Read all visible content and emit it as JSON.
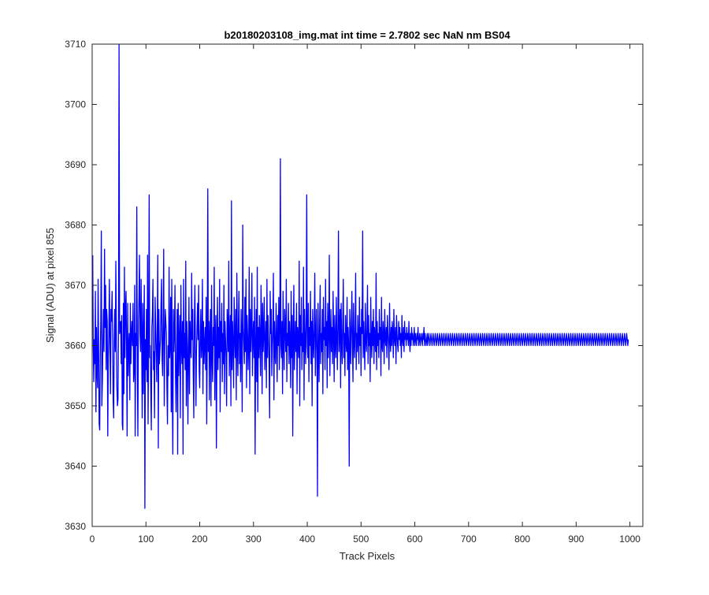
{
  "chart_data": {
    "type": "line",
    "title": "b20180203108_img.mat int time = 2.7802 sec  NaN nm BS04",
    "xlabel": "Track Pixels",
    "ylabel": "Signal (ADU) at pixel 855",
    "xlim": [
      0,
      1024
    ],
    "ylim": [
      3630,
      3710
    ],
    "x_ticks": [
      0,
      100,
      200,
      300,
      400,
      500,
      600,
      700,
      800,
      900,
      1000
    ],
    "y_ticks": [
      3630,
      3640,
      3650,
      3660,
      3670,
      3680,
      3690,
      3700,
      3710
    ],
    "grid": false,
    "legend": "none",
    "colors": {
      "series": "#0000ff",
      "axes": "#262626",
      "background": "#ffffff"
    },
    "series": [
      {
        "x_start": 1,
        "x_step": 1,
        "values": [
          3675,
          3660,
          3654,
          3661,
          3657,
          3669,
          3649,
          3663,
          3656,
          3653,
          3671,
          3660,
          3647,
          3646,
          3658,
          3664,
          3679,
          3650,
          3654,
          3661,
          3666,
          3659,
          3676,
          3663,
          3670,
          3656,
          3666,
          3664,
          3645,
          3658,
          3662,
          3671,
          3660,
          3652,
          3666,
          3664,
          3669,
          3662,
          3651,
          3648,
          3661,
          3666,
          3659,
          3674,
          3662,
          3653,
          3650,
          3651,
          3664,
          3710,
          3662,
          3663,
          3664,
          3657,
          3665,
          3647,
          3646,
          3667,
          3652,
          3673,
          3658,
          3666,
          3669,
          3659,
          3645,
          3667,
          3655,
          3660,
          3662,
          3651,
          3667,
          3657,
          3662,
          3664,
          3660,
          3667,
          3654,
          3656,
          3670,
          3645,
          3662,
          3660,
          3683,
          3655,
          3645,
          3664,
          3668,
          3675,
          3662,
          3659,
          3671,
          3662,
          3648,
          3667,
          3652,
          3662,
          3670,
          3633,
          3661,
          3656,
          3666,
          3654,
          3675,
          3647,
          3662,
          3685,
          3658,
          3660,
          3653,
          3646,
          3663,
          3665,
          3671,
          3656,
          3659,
          3648,
          3668,
          3664,
          3659,
          3654,
          3662,
          3675,
          3643,
          3666,
          3657,
          3659,
          3661,
          3667,
          3671,
          3658,
          3655,
          3664,
          3676,
          3650,
          3660,
          3666,
          3664,
          3662,
          3653,
          3647,
          3660,
          3655,
          3673,
          3658,
          3660,
          3668,
          3649,
          3671,
          3652,
          3642,
          3666,
          3659,
          3662,
          3670,
          3655,
          3649,
          3658,
          3666,
          3642,
          3667,
          3655,
          3661,
          3665,
          3648,
          3670,
          3660,
          3657,
          3664,
          3642,
          3671,
          3658,
          3662,
          3656,
          3674,
          3650,
          3664,
          3660,
          3647,
          3658,
          3668,
          3652,
          3664,
          3660,
          3658,
          3672,
          3661,
          3666,
          3655,
          3648,
          3664,
          3670,
          3660,
          3650,
          3659,
          3663,
          3667,
          3661,
          3670,
          3656,
          3653,
          3662,
          3666,
          3658,
          3660,
          3671,
          3652,
          3664,
          3657,
          3660,
          3663,
          3656,
          3668,
          3647,
          3660,
          3686,
          3659,
          3664,
          3651,
          3662,
          3666,
          3650,
          3670,
          3658,
          3654,
          3663,
          3660,
          3673,
          3651,
          3662,
          3665,
          3643,
          3660,
          3668,
          3656,
          3663,
          3658,
          3671,
          3649,
          3664,
          3659,
          3667,
          3654,
          3662,
          3657,
          3670,
          3652,
          3664,
          3661,
          3658,
          3650,
          3666,
          3663,
          3659,
          3674,
          3655,
          3661,
          3665,
          3650,
          3684,
          3656,
          3664,
          3660,
          3653,
          3668,
          3662,
          3658,
          3666,
          3651,
          3672,
          3660,
          3655,
          3664,
          3669,
          3657,
          3662,
          3654,
          3666,
          3661,
          3649,
          3680,
          3663,
          3660,
          3657,
          3668,
          3659,
          3671,
          3653,
          3665,
          3662,
          3656,
          3660,
          3673,
          3652,
          3666,
          3659,
          3663,
          3672,
          3655,
          3661,
          3664,
          3658,
          3668,
          3642,
          3660,
          3666,
          3654,
          3673,
          3649,
          3663,
          3658,
          3665,
          3661,
          3655,
          3670,
          3664,
          3652,
          3667,
          3659,
          3662,
          3668,
          3656,
          3660,
          3664,
          3653,
          3671,
          3658,
          3665,
          3661,
          3657,
          3648,
          3669,
          3662,
          3666,
          3655,
          3660,
          3663,
          3672,
          3651,
          3664,
          3659,
          3657,
          3667,
          3661,
          3654,
          3665,
          3660,
          3668,
          3656,
          3662,
          3691,
          3660,
          3658,
          3664,
          3652,
          3669,
          3661,
          3656,
          3666,
          3663,
          3659,
          3671,
          3654,
          3662,
          3660,
          3667,
          3657,
          3664,
          3661,
          3653,
          3669,
          3658,
          3665,
          3645,
          3662,
          3670,
          3656,
          3660,
          3664,
          3659,
          3667,
          3652,
          3663,
          3661,
          3658,
          3674,
          3650,
          3665,
          3660,
          3668,
          3656,
          3662,
          3659,
          3673,
          3651,
          3666,
          3661,
          3657,
          3664,
          3685,
          3660,
          3658,
          3667,
          3654,
          3663,
          3660,
          3669,
          3657,
          3664,
          3650,
          3666,
          3661,
          3658,
          3663,
          3672,
          3655,
          3661,
          3666,
          3659,
          3635,
          3667,
          3660,
          3654,
          3664,
          3670,
          3657,
          3662,
          3659,
          3666,
          3652,
          3668,
          3661,
          3663,
          3656,
          3671,
          3660,
          3664,
          3653,
          3667,
          3658,
          3662,
          3675,
          3655,
          3661,
          3666,
          3659,
          3663,
          3657,
          3669,
          3662,
          3654,
          3665,
          3660,
          3658,
          3668,
          3661,
          3656,
          3664,
          3679,
          3659,
          3662,
          3666,
          3653,
          3667,
          3660,
          3657,
          3664,
          3671,
          3658,
          3662,
          3655,
          3665,
          3661,
          3659,
          3668,
          3656,
          3663,
          3660,
          3640,
          3666,
          3662,
          3657,
          3664,
          3669,
          3660,
          3654,
          3667,
          3661,
          3658,
          3663,
          3672,
          3656,
          3662,
          3659,
          3665,
          3661,
          3657,
          3668,
          3660,
          3663,
          3655,
          3666,
          3662,
          3679,
          3658,
          3664,
          3660,
          3656,
          3667,
          3661,
          3659,
          3663,
          3670,
          3657,
          3665,
          3660,
          3662,
          3654,
          3668,
          3661,
          3658,
          3664,
          3660,
          3666,
          3657,
          3663,
          3661,
          3659,
          3672,
          3656,
          3664,
          3660,
          3662,
          3658,
          3666,
          3661,
          3663,
          3655,
          3668,
          3660,
          3659,
          3664,
          3662,
          3657,
          3666,
          3661,
          3660,
          3663,
          3658,
          3665,
          3662,
          3660,
          3656,
          3667,
          3661,
          3659,
          3663,
          3660,
          3664,
          3662,
          3658,
          3666,
          3661,
          3660,
          3663,
          3657,
          3665,
          3662,
          3660,
          3659,
          3664,
          3661,
          3663,
          3660,
          3662,
          3658,
          3665,
          3661,
          3660,
          3663,
          3659,
          3664,
          3661,
          3662,
          3660,
          3663,
          3661,
          3662,
          3660,
          3664,
          3661,
          3659,
          3662,
          3660,
          3663,
          3661,
          3662,
          3660,
          3661,
          3663,
          3660,
          3662,
          3661,
          3660,
          3662,
          3661,
          3663,
          3660,
          3661,
          3662,
          3660,
          3661,
          3662,
          3661,
          3660,
          3662,
          3661,
          3663,
          3660,
          3662,
          3661,
          3660,
          3661,
          3662,
          3660,
          3661,
          3662,
          3661,
          3660,
          3661,
          3662,
          3661,
          3660,
          3661,
          3662,
          3661,
          3660,
          3661,
          3662,
          3661,
          3660,
          3661,
          3662,
          3661,
          3660,
          3661,
          3662,
          3661,
          3660,
          3661,
          3662,
          3661,
          3660,
          3661,
          3662,
          3661,
          3660,
          3661,
          3662,
          3661,
          3660,
          3661,
          3662,
          3661,
          3660,
          3661,
          3662,
          3661,
          3660,
          3661,
          3662,
          3661,
          3660,
          3661,
          3662,
          3661,
          3660,
          3661,
          3662,
          3661,
          3660,
          3661,
          3662,
          3661,
          3660,
          3661,
          3662,
          3661,
          3660,
          3661,
          3662,
          3661,
          3660,
          3661,
          3662,
          3661,
          3660,
          3661,
          3662,
          3661,
          3660,
          3661,
          3662,
          3661,
          3660,
          3661,
          3662,
          3661,
          3660,
          3661,
          3662,
          3661,
          3660,
          3661,
          3662,
          3661,
          3660,
          3661,
          3662,
          3661,
          3660,
          3661,
          3662,
          3661,
          3660,
          3661,
          3662,
          3661,
          3660,
          3661,
          3662,
          3661,
          3660,
          3661,
          3662,
          3661,
          3660,
          3661,
          3662,
          3661,
          3660,
          3661,
          3662,
          3661,
          3660,
          3661,
          3662,
          3661,
          3660,
          3661,
          3662,
          3661,
          3660,
          3661,
          3662,
          3661,
          3660,
          3661,
          3662,
          3661,
          3660,
          3661,
          3662,
          3661,
          3660,
          3661,
          3662,
          3661,
          3660,
          3661,
          3662,
          3661,
          3660,
          3661,
          3662,
          3661,
          3660,
          3661,
          3662,
          3661,
          3660,
          3661,
          3662,
          3661,
          3660,
          3661,
          3662,
          3661,
          3660,
          3661,
          3662,
          3661,
          3660,
          3661,
          3662,
          3661,
          3660,
          3661,
          3662,
          3661,
          3660,
          3661,
          3662,
          3661,
          3660,
          3661,
          3662,
          3661,
          3660,
          3661,
          3662,
          3661,
          3660,
          3661,
          3662,
          3661,
          3660,
          3661,
          3662,
          3661,
          3660,
          3661,
          3662,
          3661,
          3660,
          3661,
          3662,
          3661,
          3660,
          3661,
          3662,
          3661,
          3660,
          3661,
          3662,
          3661,
          3660,
          3661,
          3662,
          3661,
          3660,
          3661,
          3662,
          3661,
          3660,
          3661,
          3662,
          3661,
          3660,
          3661,
          3662,
          3661,
          3660,
          3661,
          3662,
          3661,
          3660,
          3661,
          3662,
          3661,
          3660,
          3661,
          3662,
          3661,
          3660,
          3661,
          3662,
          3661,
          3660,
          3661,
          3662,
          3661,
          3660,
          3661,
          3662,
          3661,
          3660,
          3661,
          3662,
          3661,
          3660,
          3661,
          3662,
          3661,
          3660,
          3661,
          3662,
          3661,
          3660,
          3661,
          3662,
          3661,
          3660,
          3661,
          3662,
          3661,
          3660,
          3661,
          3662,
          3661,
          3660,
          3661,
          3662,
          3661,
          3660,
          3661,
          3662,
          3661,
          3660,
          3661,
          3662,
          3661,
          3660,
          3661,
          3662,
          3661,
          3660,
          3661,
          3662,
          3661,
          3660,
          3661,
          3662,
          3661,
          3660,
          3661,
          3662,
          3661,
          3660,
          3661,
          3662,
          3661,
          3660,
          3661,
          3662,
          3661,
          3660,
          3661,
          3662,
          3661,
          3660,
          3661,
          3662,
          3661,
          3660,
          3661,
          3662,
          3661,
          3660,
          3661,
          3662,
          3661,
          3660,
          3661,
          3662,
          3661,
          3660,
          3661,
          3662,
          3661,
          3660,
          3661,
          3662,
          3661,
          3660,
          3661,
          3662,
          3661,
          3660,
          3661,
          3662,
          3661,
          3660,
          3661,
          3662,
          3661,
          3660,
          3661,
          3662,
          3661,
          3660,
          3661,
          3662,
          3661,
          3660,
          3661,
          3662,
          3661,
          3660,
          3661,
          3662,
          3661,
          3660,
          3661,
          3662,
          3661,
          3660,
          3661
        ]
      }
    ]
  }
}
